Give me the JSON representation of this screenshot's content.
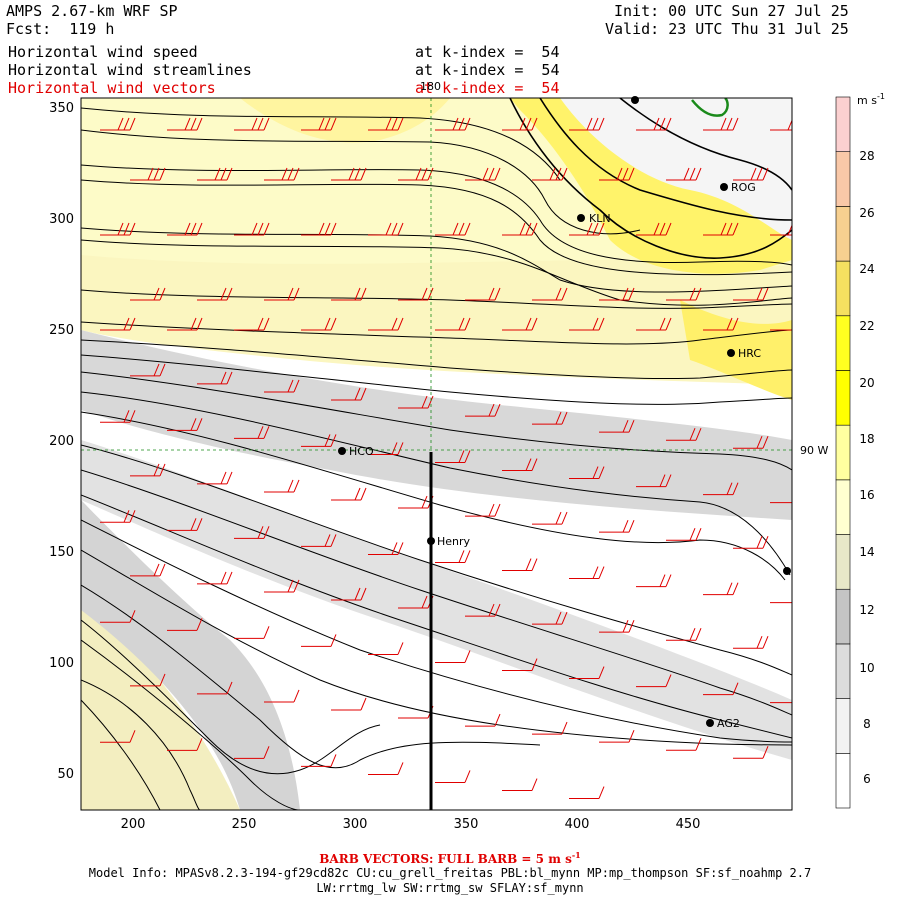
{
  "header": {
    "model": "AMPS 2.67-km WRF SP",
    "fcst": "Fcst:  119 h",
    "init": "Init: 00 UTC Sun 27 Jul 25",
    "valid": "Valid: 23 UTC Thu 31 Jul 25"
  },
  "fields": [
    {
      "label": "Horizontal wind speed",
      "level": "at k-index =  54",
      "color": "#000000"
    },
    {
      "label": "Horizontal wind streamlines",
      "level": "at k-index =  54",
      "color": "#000000"
    },
    {
      "label": "Horizontal wind vectors",
      "level": "at k-index =  54",
      "color": "#e00000"
    }
  ],
  "map": {
    "meridian_label": "180",
    "longitude_label": "90 W",
    "x_ticks": [
      "200",
      "250",
      "300",
      "350",
      "400",
      "450"
    ],
    "y_ticks": [
      "50",
      "100",
      "150",
      "200",
      "250",
      "300",
      "350"
    ],
    "stations": [
      {
        "name": "HCO"
      },
      {
        "name": "Henry"
      },
      {
        "name": "KLN"
      },
      {
        "name": "ROG"
      },
      {
        "name": "HRC"
      },
      {
        "name": "AG2"
      }
    ]
  },
  "colorbar": {
    "units": "m s",
    "units_sup": "-1",
    "levels": [
      "6",
      "8",
      "10",
      "12",
      "14",
      "16",
      "18",
      "20",
      "22",
      "24",
      "26",
      "28"
    ],
    "colors": [
      "#ffffff",
      "#f2f2f2",
      "#dcdcdc",
      "#c4c4c4",
      "#e8e8c8",
      "#ffffd0",
      "#ffffa0",
      "#ffff00",
      "#ffff20",
      "#f5e060",
      "#f7d090",
      "#f9c8a8",
      "#fbd0d0"
    ]
  },
  "footer": {
    "barb_note": "BARB VECTORS:  FULL BARB = 5 m s",
    "barb_sup": "-1",
    "model_info": "Model Info: MPASv8.2.3-194-gf29cd82c CU:cu_grell_freitas PBL:bl_mynn MP:mp_thompson SF:sf_noahmp 2.7",
    "physics": "LW:rrtmg_lw SW:rrtmg_sw SFLAY:sf_mynn"
  }
}
